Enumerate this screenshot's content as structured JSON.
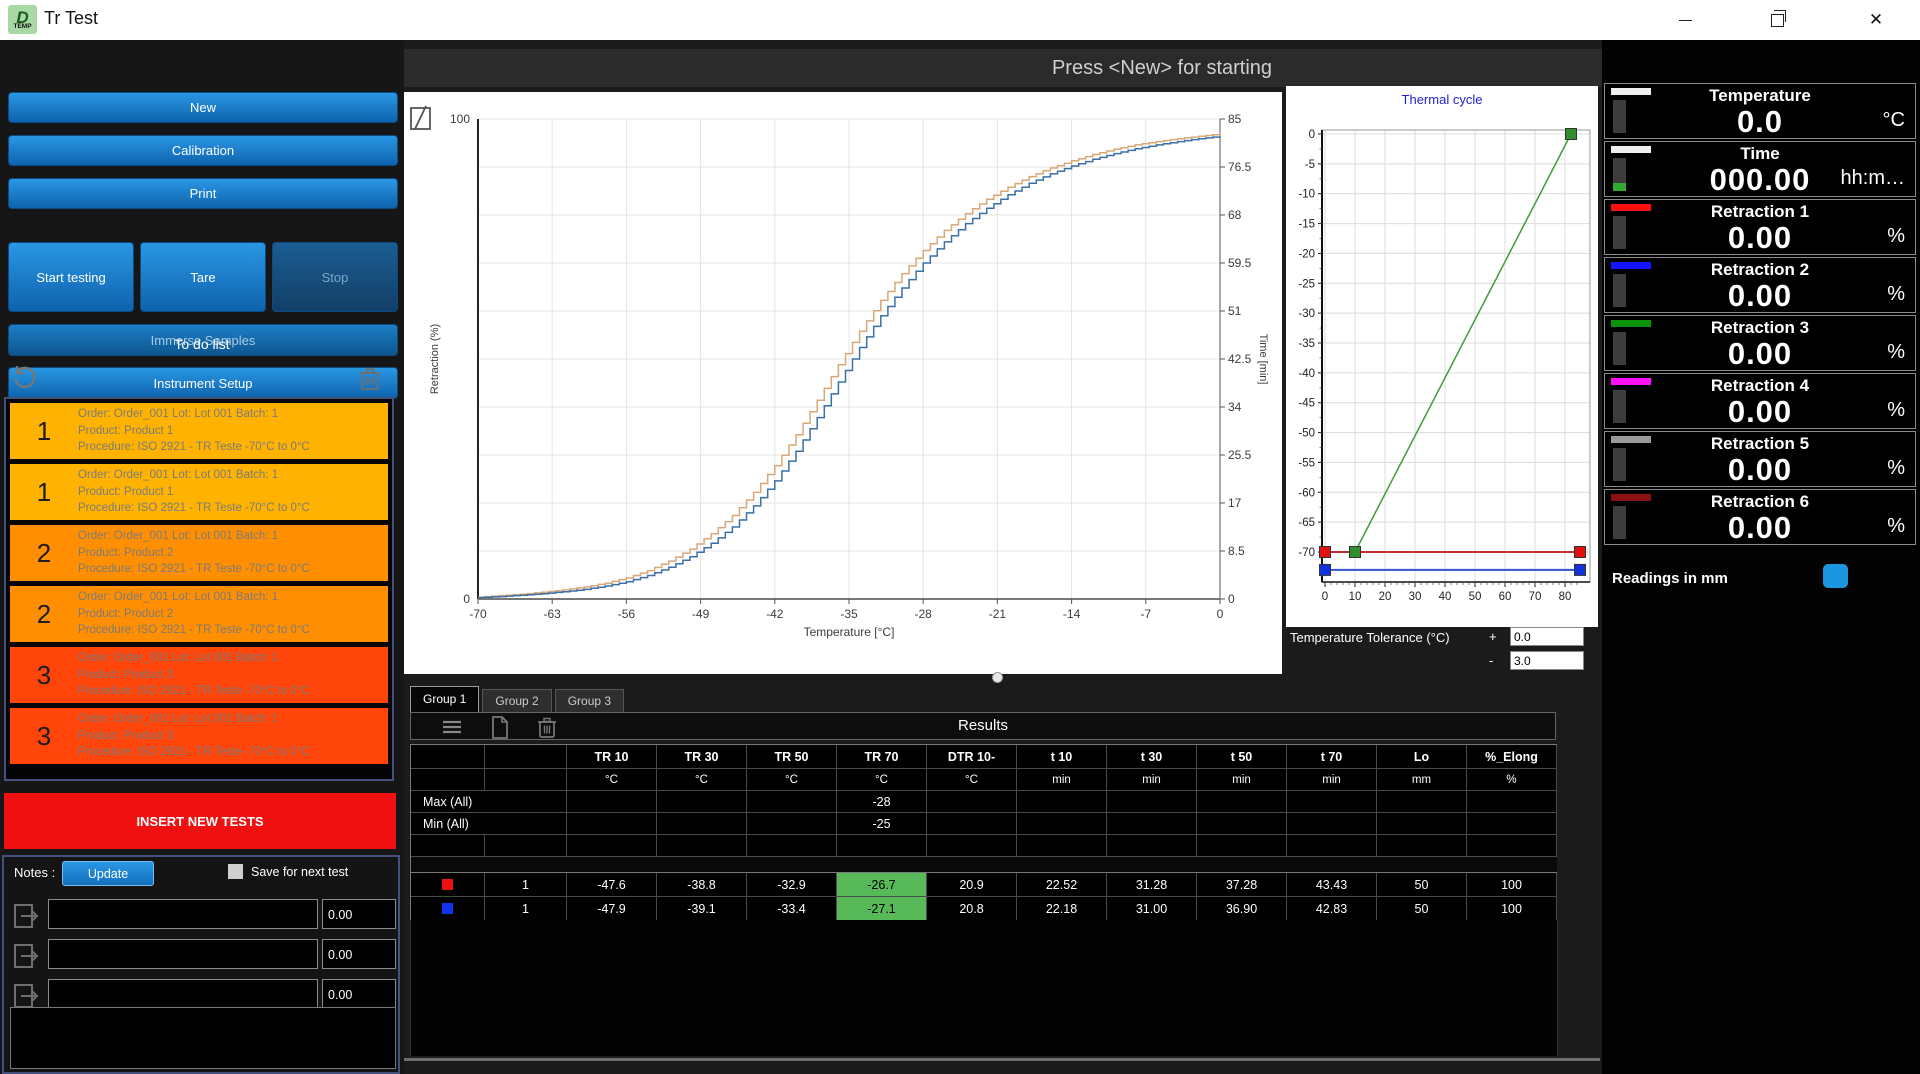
{
  "window": {
    "title": "Tr Test"
  },
  "icons": {
    "close_glyph": "✕"
  },
  "header": {
    "message": "Press <New> for starting"
  },
  "sidebar": {
    "buttons": {
      "new": "New",
      "calibration": "Calibration",
      "print": "Print",
      "start_testing": "Start testing",
      "tare": "Tare",
      "stop": "Stop",
      "immerse": "Immerse Samples",
      "setup": "Instrument Setup"
    },
    "todo": {
      "title": "To do list",
      "items": [
        {
          "num": "1",
          "line1": "Order: Order_001 Lot: Lot 001 Batch: 1",
          "line2": "Product: Product 1",
          "line3": "Procedure: ISO 2921 - TR Teste -70°C to 0°C",
          "color": "#ffb300"
        },
        {
          "num": "1",
          "line1": "Order: Order_001 Lot: Lot 001 Batch: 1",
          "line2": "Product: Product 1",
          "line3": "Procedure: ISO 2921 - TR Teste -70°C to 0°C",
          "color": "#ffb300"
        },
        {
          "num": "2",
          "line1": "Order: Order_001 Lot: Lot 001 Batch: 1",
          "line2": "Product: Product 2",
          "line3": "Procedure: ISO 2921 - TR Teste -70°C to 0°C",
          "color": "#ff8e01"
        },
        {
          "num": "2",
          "line1": "Order: Order_001 Lot: Lot 001 Batch: 1",
          "line2": "Product: Product 2",
          "line3": "Procedure: ISO 2921 - TR Teste -70°C to 0°C",
          "color": "#ff8e01"
        },
        {
          "num": "3",
          "line1": "Order: Order_001 Lot: Lot 001 Batch: 1",
          "line2": "Product: Product 3",
          "line3": "Procedure: ISO 2921 - TR Teste -70°C to 0°C",
          "color": "#ff4509"
        },
        {
          "num": "3",
          "line1": "Order: Order_001 Lot: Lot 001 Batch: 1",
          "line2": "Product: Product 3",
          "line3": "Procedure: ISO 2921 - TR Teste -70°C to 0°C",
          "color": "#ff4509"
        }
      ]
    },
    "insert_button": "INSERT NEW TESTS",
    "notes": {
      "label": "Notes :",
      "update": "Update",
      "save_checkbox": "Save for next test",
      "rows": [
        {
          "value": "0.00"
        },
        {
          "value": "0.00"
        },
        {
          "value": "0.00"
        }
      ]
    }
  },
  "tolerance": {
    "label": "Temperature Tolerance (°C)",
    "plus_sign": "+",
    "plus_value": "0.0",
    "minus_sign": "-",
    "minus_value": "3.0"
  },
  "tabs": [
    {
      "label": "Group 1",
      "active": true
    },
    {
      "label": "Group 2",
      "active": false
    },
    {
      "label": "Group 3",
      "active": false
    }
  ],
  "results": {
    "title": "Results",
    "columns": [
      "TR 10",
      "TR 30",
      "TR 50",
      "TR 70",
      "DTR 10-",
      "t 10",
      "t 30",
      "t 50",
      "t 70",
      "Lo",
      "%_Elong"
    ],
    "units": [
      "°C",
      "°C",
      "°C",
      "°C",
      "°C",
      "min",
      "min",
      "min",
      "min",
      "mm",
      "%"
    ],
    "summary_rows": [
      {
        "label": "Max (All)",
        "values": [
          "",
          "",
          "",
          "-28",
          "",
          "",
          "",
          "",
          "",
          "",
          ""
        ]
      },
      {
        "label": "Min (All)",
        "values": [
          "",
          "",
          "",
          "-25",
          "",
          "",
          "",
          "",
          "",
          "",
          ""
        ]
      }
    ],
    "highlight_column": 3,
    "highlight_color": "#57b957",
    "rows": [
      {
        "marker_color": "#ee1111",
        "sample": "1",
        "values": [
          "-47.6",
          "-38.8",
          "-32.9",
          "-26.7",
          "20.9",
          "22.52",
          "31.28",
          "37.28",
          "43.43",
          "50",
          "100"
        ]
      },
      {
        "marker_color": "#1133ee",
        "sample": "1",
        "values": [
          "-47.9",
          "-39.1",
          "-33.4",
          "-27.1",
          "20.8",
          "22.18",
          "31.00",
          "36.90",
          "42.83",
          "50",
          "100"
        ]
      }
    ]
  },
  "right_panel": {
    "readings_label": "Readings in mm",
    "gauges": [
      {
        "title": "Temperature",
        "value": "0.0",
        "unit": "°C",
        "chip_color": "#efefef",
        "green_segment": false
      },
      {
        "title": "Time",
        "value": "000.00",
        "unit": "hh:m…",
        "chip_color": "#efefef",
        "green_segment": true
      },
      {
        "title": "Retraction 1",
        "value": "0.00",
        "unit": "%",
        "chip_color": "#ff1010",
        "green_segment": false
      },
      {
        "title": "Retraction 2",
        "value": "0.00",
        "unit": "%",
        "chip_color": "#1414ff",
        "green_segment": false
      },
      {
        "title": "Retraction 3",
        "value": "0.00",
        "unit": "%",
        "chip_color": "#0c930c",
        "green_segment": false
      },
      {
        "title": "Retraction 4",
        "value": "0.00",
        "unit": "%",
        "chip_color": "#ff10ff",
        "green_segment": false
      },
      {
        "title": "Retraction 5",
        "value": "0.00",
        "unit": "%",
        "chip_color": "#9a9a9a",
        "green_segment": false
      },
      {
        "title": "Retraction 6",
        "value": "0.00",
        "unit": "%",
        "chip_color": "#8a1212",
        "green_segment": false
      }
    ]
  },
  "chart_data": [
    {
      "type": "line",
      "name": "retraction_chart",
      "xlabel": "Temperature [°C]",
      "ylabel_left": "Retraction (%)",
      "ylabel_right": "Time [min]",
      "x_ticks": [
        -70,
        -63,
        -56,
        -49,
        -42,
        -35,
        -28,
        -21,
        -14,
        -7,
        0
      ],
      "y_left_ticks": [
        100,
        0
      ],
      "y_right_ticks": [
        85,
        76.5,
        68,
        59.5,
        51,
        42.5,
        34,
        25.5,
        17,
        8.5,
        0
      ],
      "xlim": [
        -70,
        0
      ],
      "ylim": [
        0,
        100
      ],
      "grid": true,
      "series": [
        {
          "name": "specimen-orange",
          "color": "#d8a878",
          "points": [
            [
              -70,
              0.4
            ],
            [
              -68,
              0.7
            ],
            [
              -66,
              1.0
            ],
            [
              -64,
              1.4
            ],
            [
              -62,
              1.9
            ],
            [
              -60,
              2.5
            ],
            [
              -58,
              3.3
            ],
            [
              -56,
              4.4
            ],
            [
              -54,
              5.9
            ],
            [
              -52,
              7.9
            ],
            [
              -50,
              10.4
            ],
            [
              -48,
              13.6
            ],
            [
              -46,
              17.4
            ],
            [
              -44,
              22.2
            ],
            [
              -42,
              27.8
            ],
            [
              -40,
              34.2
            ],
            [
              -38,
              41.4
            ],
            [
              -36,
              48.8
            ],
            [
              -34,
              55.8
            ],
            [
              -32,
              62.2
            ],
            [
              -30,
              67.8
            ],
            [
              -28,
              72.6
            ],
            [
              -26,
              76.8
            ],
            [
              -24,
              80.3
            ],
            [
              -22,
              83.3
            ],
            [
              -20,
              85.8
            ],
            [
              -18,
              88.0
            ],
            [
              -16,
              89.8
            ],
            [
              -14,
              91.3
            ],
            [
              -12,
              92.6
            ],
            [
              -10,
              93.7
            ],
            [
              -8,
              94.6
            ],
            [
              -6,
              95.3
            ],
            [
              -4,
              95.9
            ],
            [
              -2,
              96.4
            ],
            [
              0,
              96.9
            ]
          ]
        },
        {
          "name": "specimen-blue",
          "color": "#3a6fa8",
          "points": [
            [
              -70,
              0.3
            ],
            [
              -68,
              0.5
            ],
            [
              -66,
              0.8
            ],
            [
              -64,
              1.1
            ],
            [
              -62,
              1.5
            ],
            [
              -60,
              2.0
            ],
            [
              -58,
              2.7
            ],
            [
              -56,
              3.6
            ],
            [
              -54,
              4.9
            ],
            [
              -52,
              6.6
            ],
            [
              -50,
              8.8
            ],
            [
              -48,
              11.6
            ],
            [
              -46,
              15.0
            ],
            [
              -44,
              19.4
            ],
            [
              -42,
              24.6
            ],
            [
              -40,
              30.8
            ],
            [
              -38,
              37.8
            ],
            [
              -36,
              45.2
            ],
            [
              -34,
              52.4
            ],
            [
              -32,
              59.0
            ],
            [
              -30,
              64.8
            ],
            [
              -28,
              70.0
            ],
            [
              -26,
              74.4
            ],
            [
              -24,
              78.2
            ],
            [
              -22,
              81.4
            ],
            [
              -20,
              84.2
            ],
            [
              -18,
              86.6
            ],
            [
              -16,
              88.6
            ],
            [
              -14,
              90.2
            ],
            [
              -12,
              91.6
            ],
            [
              -10,
              92.8
            ],
            [
              -8,
              93.8
            ],
            [
              -6,
              94.6
            ],
            [
              -4,
              95.3
            ],
            [
              -2,
              95.9
            ],
            [
              0,
              96.4
            ]
          ]
        }
      ]
    },
    {
      "type": "line",
      "name": "thermal_cycle",
      "title": "Thermal cycle",
      "x_ticks": [
        0,
        10,
        20,
        30,
        40,
        50,
        60,
        70,
        80
      ],
      "y_ticks": [
        0,
        -5,
        -10,
        -15,
        -20,
        -25,
        -30,
        -35,
        -40,
        -45,
        -50,
        -55,
        -60,
        -65,
        -70
      ],
      "xlim": [
        0,
        85
      ],
      "ylim": [
        -75,
        0
      ],
      "grid": true,
      "series": [
        {
          "name": "ramp",
          "color": "#3f9c3f",
          "marker": "#2f8f2f",
          "points": [
            [
              10,
              -70
            ],
            [
              82,
              0
            ]
          ]
        },
        {
          "name": "hold",
          "color": "#c03030",
          "marker": "#e01010",
          "points": [
            [
              0,
              -70
            ],
            [
              85,
              -70
            ]
          ]
        },
        {
          "name": "baseline",
          "color": "#3355cc",
          "marker": "#1133dd",
          "points": [
            [
              0,
              -73
            ],
            [
              85,
              -73
            ]
          ]
        }
      ]
    }
  ]
}
